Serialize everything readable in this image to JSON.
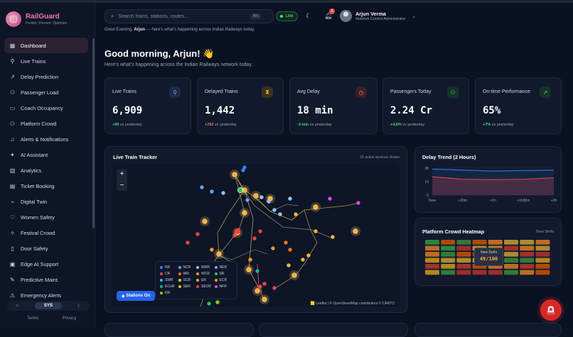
{
  "brand": {
    "name": "RailGuard",
    "tagline": "Predict. Prevent. Optimize."
  },
  "nav": [
    {
      "label": "Dashboard",
      "icon": "grid-icon",
      "glyph": "▦",
      "active": true
    },
    {
      "label": "Live Trains",
      "icon": "train-icon",
      "glyph": "⚲"
    },
    {
      "label": "Delay Prediction",
      "icon": "trend-icon",
      "glyph": "↗"
    },
    {
      "label": "Passenger Load",
      "icon": "users-icon",
      "glyph": "⚇"
    },
    {
      "label": "Coach Occupancy",
      "icon": "coach-icon",
      "glyph": "▭"
    },
    {
      "label": "Platform Crowd",
      "icon": "crowd-icon",
      "glyph": "⚇"
    },
    {
      "label": "Alerts & Notifications",
      "icon": "bell-icon",
      "glyph": "♫"
    },
    {
      "label": "AI Assistant",
      "icon": "sparkle-icon",
      "glyph": "✦"
    },
    {
      "label": "Analytics",
      "icon": "bar-chart-icon",
      "glyph": "▥"
    },
    {
      "label": "Ticket Booking",
      "icon": "ticket-icon",
      "glyph": "▤"
    },
    {
      "label": "Digital Twin",
      "icon": "digital-twin-icon",
      "glyph": "⌁"
    },
    {
      "label": "Women Safety",
      "icon": "heart-icon",
      "glyph": "♡"
    },
    {
      "label": "Festival Crowd",
      "icon": "festival-icon",
      "glyph": "✧"
    },
    {
      "label": "Door Safety",
      "icon": "door-icon",
      "glyph": "▯"
    },
    {
      "label": "Edge AI Support",
      "icon": "chip-icon",
      "glyph": "▣"
    },
    {
      "label": "Predictive Maint.",
      "icon": "wrench-icon",
      "glyph": "✎"
    },
    {
      "label": "Emergency Alerts",
      "icon": "alert-icon",
      "glyph": "⚠"
    }
  ],
  "theme": {
    "light": "☼",
    "system": "SYS",
    "dark": "☾"
  },
  "legal": {
    "terms": "Terms",
    "privacy": "Privacy"
  },
  "header": {
    "search_placeholder": "Search trains, stations, routes...",
    "shortcut": "⌘K",
    "live_label": "Live",
    "notif_count": "3",
    "user_name": "Arjun Verma",
    "user_role": "Network Control Administrator",
    "sub_greeting_prefix": "Good Evening,",
    "sub_greeting_name": "Arjun",
    "sub_greeting_suffix": "— here's what's happening across Indian Railways today."
  },
  "greeting": {
    "title": "Good morning, Arjun! 👋",
    "subtitle": "Here's what's happening across the Indian Railways network today."
  },
  "stats": [
    {
      "label": "Live Trains",
      "value": "6,909",
      "delta": "+99",
      "delta_suffix": "vs yesterday",
      "delta_color": "#4ade80",
      "icon": "train-icon",
      "glyph": "⚲",
      "icon_color": "#60a5fa",
      "icon_bg": "#1e2a4a"
    },
    {
      "label": "Delayed Trains",
      "value": "1,442",
      "delta": "+292",
      "delta_suffix": "vs yesterday",
      "delta_color": "#f87171",
      "icon": "hourglass-icon",
      "glyph": "⧗",
      "icon_color": "#fbbf24",
      "icon_bg": "#3a3020"
    },
    {
      "label": "Avg Delay",
      "value": "18 min",
      "delta": "-3 min",
      "delta_suffix": "vs yesterday",
      "delta_color": "#4ade80",
      "icon": "clock-icon",
      "glyph": "◷",
      "icon_color": "#f87171",
      "icon_bg": "#3a2028"
    },
    {
      "label": "Passengers Today",
      "value": "2.24 Cr",
      "delta": "+4.6%",
      "delta_suffix": "vs yesterday",
      "delta_color": "#4ade80",
      "icon": "users-icon",
      "glyph": "⚇",
      "icon_color": "#4ade80",
      "icon_bg": "#163328"
    },
    {
      "label": "On-time Performance",
      "value": "65%",
      "delta": "+7%",
      "delta_suffix": "vs yesterday",
      "delta_color": "#4ade80",
      "icon": "trend-up-icon",
      "glyph": "↗",
      "icon_color": "#4ade80",
      "icon_bg": "#163328"
    }
  ],
  "tracker": {
    "title": "Live Train Tracker",
    "count": "15 active services shown",
    "zoom_in": "+",
    "zoom_out": "−",
    "stations_btn": "Stations On",
    "attribution": "🟨 Leaflet | © OpenStreetMap contributors © CARTO",
    "legend": [
      {
        "code": "NR",
        "color": "#3b82f6"
      },
      {
        "code": "NCR",
        "color": "#60a5fa"
      },
      {
        "code": "NWR",
        "color": "#93c5fd"
      },
      {
        "code": "NER",
        "color": "#a78bfa"
      },
      {
        "code": "CR",
        "color": "#ef4444"
      },
      {
        "code": "WR",
        "color": "#f97316"
      },
      {
        "code": "WCR",
        "color": "#fb923c"
      },
      {
        "code": "SR",
        "color": "#22c55e"
      },
      {
        "code": "SWR",
        "color": "#38bdf8"
      },
      {
        "code": "SCR",
        "color": "#facc15"
      },
      {
        "code": "ER",
        "color": "#eab308"
      },
      {
        "code": "ECR",
        "color": "#f59e0b"
      },
      {
        "code": "ECoR",
        "color": "#10b981"
      },
      {
        "code": "SER",
        "color": "#fbbf24"
      },
      {
        "code": "SECR",
        "color": "#f43f5e"
      },
      {
        "code": "NFR",
        "color": "#d946ef"
      },
      {
        "code": "KR",
        "color": "#84cc16"
      }
    ]
  },
  "delay_trend": {
    "title": "Delay Trend (2 Hours)",
    "chart_data": {
      "type": "area",
      "x": [
        "Now",
        "+30m",
        "+1h",
        "+1h30m",
        "+2h"
      ],
      "y_ticks": [
        "28",
        "14",
        "0"
      ],
      "ylim": [
        0,
        28
      ],
      "series": [
        {
          "values": [
            27,
            26,
            25,
            25.5,
            26
          ],
          "color": "#3b82f6"
        },
        {
          "values": [
            19,
            16.5,
            16,
            16.5,
            18
          ],
          "color": "#ef4444"
        }
      ]
    }
  },
  "heatmap": {
    "title": "Platform Crowd Heatmap",
    "station": "New Delhi",
    "tip_station": "New Delhi",
    "tip_value": "49/100"
  }
}
